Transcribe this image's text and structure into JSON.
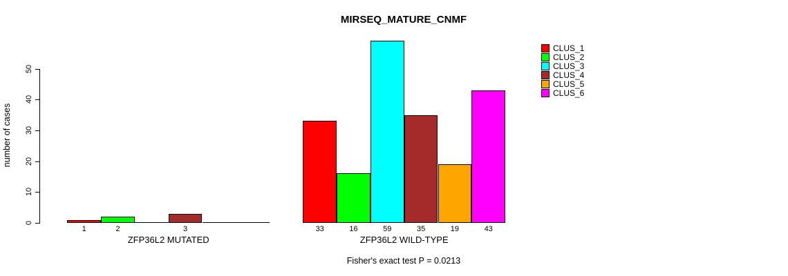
{
  "chart_data": {
    "type": "bar",
    "title": "MIRSEQ_MATURE_CNMF",
    "ylabel": "number of cases",
    "xlabel": "",
    "yticks": [
      0,
      10,
      20,
      30,
      40,
      50
    ],
    "ylim": [
      0,
      50
    ],
    "grid": false,
    "legend_position": "top-right",
    "legend": [
      {
        "name": "CLUS_1",
        "color": "#FF0000"
      },
      {
        "name": "CLUS_2",
        "color": "#00FF00"
      },
      {
        "name": "CLUS_3",
        "color": "#00FFFF"
      },
      {
        "name": "CLUS_4",
        "color": "#A52A2A"
      },
      {
        "name": "CLUS_5",
        "color": "#FFA500"
      },
      {
        "name": "CLUS_6",
        "color": "#FF00FF"
      }
    ],
    "categories": [
      "CLUS_1",
      "CLUS_2",
      "CLUS_3",
      "CLUS_4",
      "CLUS_5",
      "CLUS_6"
    ],
    "groups": [
      {
        "label": "ZFP36L2 MUTATED",
        "values": [
          1,
          2,
          0,
          3,
          0,
          0
        ],
        "bar_labels": [
          "1",
          "2",
          "",
          "3",
          "",
          ""
        ]
      },
      {
        "label": "ZFP36L2 WILD-TYPE",
        "values": [
          33,
          16,
          59,
          35,
          19,
          43
        ],
        "bar_labels": [
          "33",
          "16",
          "59",
          "35",
          "19",
          "43"
        ]
      }
    ],
    "annotation": "Fisher's exact test P = 0.0213"
  }
}
